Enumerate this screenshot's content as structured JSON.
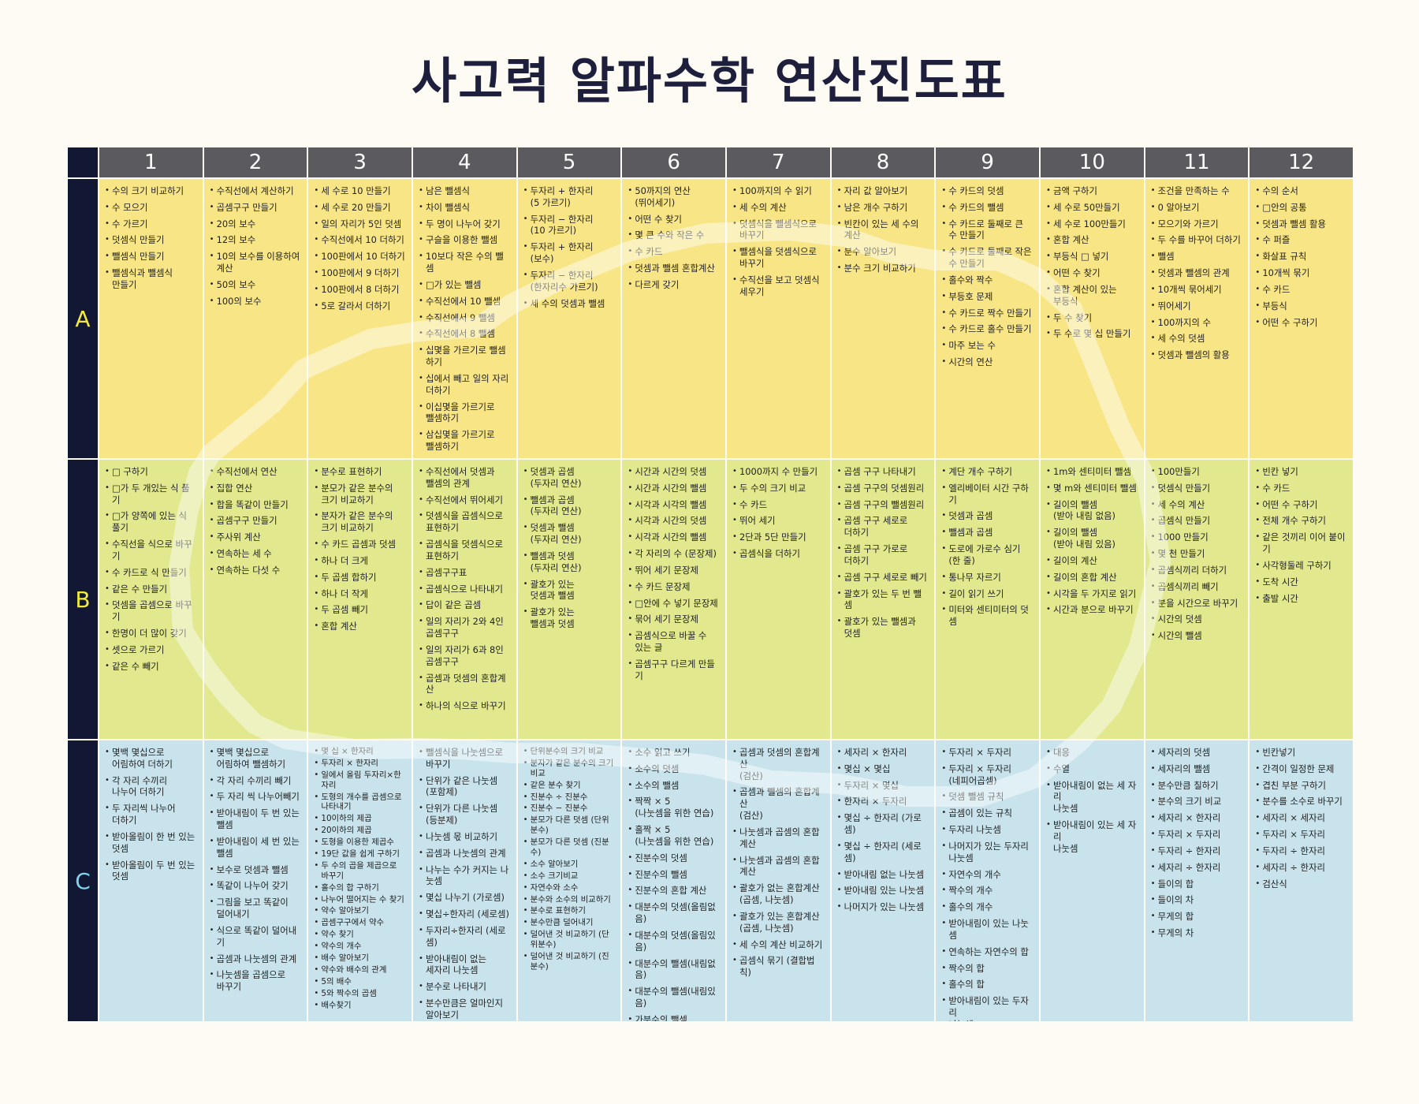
{
  "title": "사고력 알파수학 연산진도표",
  "columns": [
    "1",
    "2",
    "3",
    "4",
    "5",
    "6",
    "7",
    "8",
    "9",
    "10",
    "11",
    "12"
  ],
  "rows": [
    {
      "label": "A",
      "cells": [
        [
          "수의 크기 비교하기",
          "수 모으기",
          "수 가르기",
          "덧셈식 만들기",
          "뺄셈식 만들기",
          "뺄셈식과 뺄셈식\n만들기"
        ],
        [
          "수직선에서 계산하기",
          "곱셈구구 만들기",
          "20의 보수",
          "12의 보수",
          "10의 보수를 이용하여\n계산",
          "50의 보수",
          "100의 보수"
        ],
        [
          "세 수로 10 만들기",
          "세 수로 20 만들기",
          "일의 자리가 5인 덧셈",
          "수직선에서 10 더하기",
          "100판에서 10 더하기",
          "100판에서 9 더하기",
          "100판에서 8 더하기",
          "5로 갈라서 더하기"
        ],
        [
          "남은 뺄셈식",
          "차이 뺄셈식",
          "두 명이 나누어 갖기",
          "구슬을 이용한 뺄셈",
          "10보다 작은 수의 뺄셈",
          "□가 있는 뺄셈",
          "수직선에서 10 뺄셈",
          "수직선에서 9 뺄셈",
          "수직선에서 8 뺄셈",
          "십몇을 가르기로 뺄셈\n하기",
          "십에서 빼고 일의 자리\n더하기",
          "이십몇을 가르기로\n뺄셈하기",
          "삼십몇을 가르기로\n뺄셈하기"
        ],
        [
          "두자리 + 한자리\n(5 가르기)",
          "두자리 − 한자리\n(10 가르기)",
          "두자리 + 한자리\n(보수)",
          "두자리 − 한자리\n(한자리수 가르기)",
          "세 수의 덧셈과 뺄셈"
        ],
        [
          "50까지의 연산\n(뛰어세기)",
          "어떤 수 찾기",
          "몇 큰 수와 작은 수",
          "수 카드",
          "덧셈과 뺄셈 혼합계산",
          "다르게 갖기"
        ],
        [
          "100까지의 수 읽기",
          "세 수의 계산",
          "덧셈식을 뺄셈식으로\n바꾸기",
          "뺄셈식을 덧셈식으로\n바꾸기",
          "수직선을 보고 덧셈식\n세우기"
        ],
        [
          "자리 값 알아보기",
          "남은 개수 구하기",
          "빈칸이 있는 세 수의\n계산",
          "분수 알아보기",
          "분수 크기 비교하기"
        ],
        [
          "수 카드의 덧셈",
          "수 카드의 뺄셈",
          "수 카드로 둘째로 큰\n수 만들기",
          "수 카드로 둘째로 작은\n수 만들기",
          "홀수와 짝수",
          "부등호 문제",
          "수 카드로 짝수 만들기",
          "수 카드로 홀수 만들기",
          "마주 보는 수",
          "시간의 연산"
        ],
        [
          "금액 구하기",
          "세 수로 50만들기",
          "세 수로 100만들기",
          "혼합 계산",
          "부등식 □ 넣기",
          "어떤 수 찾기",
          "혼합 계산이 있는\n부등식",
          "두 수 찾기",
          "두 수로 몇 십 만들기"
        ],
        [
          "조건을 만족하는 수",
          "0 알아보기",
          "모으기와 가르기",
          "두 수를 바꾸어 더하기",
          "뺄셈",
          "덧셈과 뺄셈의 관계",
          "10개씩 묶어세기",
          "뛰어세기",
          "100까지의 수",
          "세 수의 덧셈",
          "덧셈과 뺄셈의 활용"
        ],
        [
          "수의 순서",
          "□안의 공통",
          "덧셈과 뺄셈 활용",
          "수 퍼즐",
          "화살표 규칙",
          "10개씩 묶기",
          "수 카드",
          "부등식",
          "어떤 수 구하기"
        ]
      ]
    },
    {
      "label": "B",
      "cells": [
        [
          "□ 구하기",
          "□가 두 개있는 식 풀기",
          "□가 양쪽에 있는 식\n풀기",
          "수직선을 식으로 바꾸기",
          "수 카드로 식 만들기",
          "같은 수 만들기",
          "덧셈을 곱셈으로 바꾸기",
          "한명이 더 많이 갖기",
          "셋으로 가르기",
          "같은 수 빼기"
        ],
        [
          "수직선에서 연산",
          "집합 연산",
          "합을 똑같이 만들기",
          "곱셈구구 만들기",
          "주사위 계산",
          "연속하는 세 수",
          "연속하는 다섯 수"
        ],
        [
          "분수로 표현하기",
          "분모가 같은 분수의\n크기 비교하기",
          "분자가 같은 분수의\n크기 비교하기",
          "수 카드 곱셈과 덧셈",
          "하나 더 크게",
          "두 곱셈 합하기",
          "하나 더 작게",
          "두 곱셈 빼기",
          "혼합 계산"
        ],
        [
          "수직선에서 덧셈과\n뺄셈의 관계",
          "수직선에서 뛰어세기",
          "덧셈식을 곱셈식으로\n표현하기",
          "곱셈식을 덧셈식으로\n표현하기",
          "곱셈구구표",
          "곱셈식으로 나타내기",
          "답이 같은 곱셈",
          "일의 자리가 2와 4인\n곱셈구구",
          "일의 자리가 6과 8인\n곱셈구구",
          "곱셈과 덧셈의 혼합계산",
          "하나의 식으로 바꾸기"
        ],
        [
          "덧셈과 곱셈\n(두자리 연산)",
          "뺄셈과 곱셈\n(두자리 연산)",
          "덧셈과 뺄셈\n(두자리 연산)",
          "뺄셈과 덧셈\n(두자리 연산)",
          "괄호가 있는\n덧셈과 뺄셈",
          "괄호가 있는\n뺄셈과 덧셈"
        ],
        [
          "시간과 시간의 덧셈",
          "시간과 시간의 뺄셈",
          "시각과 시각의 뺄셈",
          "시각과 시간의 덧셈",
          "시각과 시간의 뺄셈",
          "각 자리의 수 (문장제)",
          "뛰어 세기 문장제",
          "수 카드 문장제",
          "□안에 수 넣기 문장제",
          "묶어 세기 문장제",
          "곱셈식으로 바꿀 수\n있는 글",
          "곱셈구구 다르게 만들기"
        ],
        [
          "1000까지 수 만들기",
          "두 수의 크기 비교",
          "수 카드",
          "뛰어 세기",
          "2단과 5단 만들기",
          "곱셈식을 더하기"
        ],
        [
          "곱셈 구구 나타내기",
          "곱셈 구구의 덧셈원리",
          "곱셈 구구의 뺄셈원리",
          "곱셈 구구 세로로\n더하기",
          "곱셈 구구 가로로\n더하기",
          "곱셈 구구 세로로 빼기",
          "괄호가 있는 두 번 뺄셈",
          "괄호가 있는 뺄셈과\n덧셈"
        ],
        [
          "계단 개수 구하기",
          "엘리베이터 시간 구하기",
          "덧셈과 곱셈",
          "뺄셈과 곱셈",
          "도로에 가로수 심기\n(한 줄)",
          "통나무 자르기",
          "길이 읽기 쓰기",
          "미터와 센티미터의 덧셈"
        ],
        [
          "1m와 센티미터 뺄셈",
          "몇 m와 센티미터 뺄셈",
          "길이의 뺄셈\n(받아 내림 없음)",
          "길이의 뺄셈\n(받아 내림 있음)",
          "길이의 계산",
          "길이의 혼합 계산",
          "시각을 두 가지로 읽기",
          "시간과 분으로 바꾸기"
        ],
        [
          "100만들기",
          "덧셈식 만들기",
          "세 수의 계산",
          "곱셈식 만들기",
          "1000 만들기",
          "몇 천 만들기",
          "곱셈식끼리 더하기",
          "곱셈식끼리 빼기",
          "분을 시간으로 바꾸기",
          "시간의 덧셈",
          "시간의 뺄셈"
        ],
        [
          "빈칸 넣기",
          "수 카드",
          "어떤 수 구하기",
          "전체 개수 구하기",
          "같은 것끼리 이어 붙이기",
          "사각형둘레 구하기",
          "도착 시간",
          "출발 시간"
        ]
      ]
    },
    {
      "label": "C",
      "cells": [
        [
          "몇백 몇십으로\n어림하여 더하기",
          "각 자리 수끼리\n나누어 더하기",
          "두 자리씩 나누어\n더하기",
          "받아올림이 한 번 있는\n덧셈",
          "받아올림이 두 번 있는\n덧셈"
        ],
        [
          "몇백 몇십으로\n어림하여 뺄셈하기",
          "각 자리 수끼리 빼기",
          "두 자리 씩 나누어빼기",
          "받아내림이 두 번 있는\n뺄셈",
          "받아내림이 세 번 있는\n뺄셈",
          "보수로 덧셈과 뺄셈",
          "똑같이 나누어 갖기",
          "그림을 보고 똑같이\n덜어내기",
          "식으로 똑같이 덜어내기",
          "곱셈과 나눗셈의 관계",
          "나눗셈을 곱셈으로\n바꾸기"
        ],
        [
          "몇 십 × 한자리",
          "두자리 × 한자리",
          "일에서 올림 두자리×한자리",
          "도형의 개수를 곱셈으로 나타내기",
          "10이하의 제곱",
          "20이하의 제곱",
          "도형을 이용한 제곱수",
          "19단 값을 쉽게 구하기",
          "두 수의 곱을 제곱으로 바꾸기",
          "홀수의 합 구하기",
          "나누어 떨어지는 수 찾기",
          "약수 알아보기",
          "곱셈구구에서 약수",
          "약수 찾기",
          "약수의 개수",
          "배수 알아보기",
          "약수와 배수의 관계",
          "5의 배수",
          "5와 짝수의 곱셈",
          "배수찾기"
        ],
        [
          "뺄셈식을 나눗셈으로\n바꾸기",
          "단위가 같은 나눗셈\n(포함제)",
          "단위가 다른 나눗셈\n(등분제)",
          "나눗셈 몫 비교하기",
          "곱셈과 나눗셈의 관계",
          "나누는 수가 커지는 나눗셈",
          "몇십 나누기 (가로셈)",
          "몇십÷한자리 (세로셈)",
          "두자리÷한자리 (세로셈)",
          "받아내림이 없는\n세자리 나눗셈",
          "분수로 나타내기",
          "분수만큼은 얼마인지\n알아보기"
        ],
        [
          "단위분수의 크기 비교",
          "분자가 같은 분수의 크기 비교",
          "같은 분수 찾기",
          "진분수 ÷ 진분수",
          "진분수 − 진분수",
          "분모가 다른 덧셈 (단위분수)",
          "분모가 다른 덧셈 (진분수)",
          "소수 알아보기",
          "소수 크기비교",
          "자연수와 소수",
          "분수와 소수의 비교하기",
          "분수로 표현하기",
          "분수만큼 덜어내기",
          "덜어낸 것 비교하기 (단위분수)",
          "덜어낸 것 비교하기 (진분수)"
        ],
        [
          "소수 읽고 쓰기",
          "소수의 덧셈",
          "소수의 뺄셈",
          "짝짝 × 5\n(나눗셈을 위한 연습)",
          "홀짝 × 5\n(나눗셈을 위한 연습)",
          "진분수의 덧셈",
          "진분수의 뺄셈",
          "진분수의 혼합 계산",
          "대분수의 덧셈(올림없음)",
          "대분수의 덧셈(올림있음)",
          "대분수의 뺄셈(내림없음)",
          "대분수의 뺄셈(내림있음)",
          "가분수의 뺄셈\n(대분수로 바꿈)"
        ],
        [
          "곱셈과 덧셈의 혼합계산\n(검산)",
          "곱셈과 뺄셈의 혼합계산\n(검산)",
          "나눗셈과 곱셈의 혼합\n계산",
          "나눗셈과 곱셈의 혼합\n계산",
          "괄호가 없는 혼합계산\n(곱셈, 나눗셈)",
          "괄호가 있는 혼합계산\n(곱셈, 나눗셈)",
          "세 수의 계산 비교하기",
          "곱셈식 묶기 (결합법칙)"
        ],
        [
          "세자리 × 한자리",
          "몇십 × 몇십",
          "두자리 × 몇십",
          "한자리 × 두자리",
          "몇십 ÷ 한자리 (가로셈)",
          "몇십 ÷ 한자리 (세로셈)",
          "받아내림 없는 나눗셈",
          "받아내림 있는 나눗셈",
          "나머지가 있는 나눗셈"
        ],
        [
          "두자리 × 두자리",
          "두자리 × 두자리\n(네피어곱셈)",
          "덧셈 뺄셈 규칙",
          "곱셈이 있는 규칙",
          "두자리 나눗셈",
          "나머지가 있는 두자리\n나눗셈",
          "자연수의 개수",
          "짝수의 개수",
          "홀수의 개수",
          "받아내림이 있는 나눗셈",
          "연속하는 자연수의 합",
          "짝수의 합",
          "홀수의 합",
          "받아내림이 있는 두자리\n나눗셈"
        ],
        [
          "대응",
          "수열",
          "받아내림이 없는 세 자리\n나눗셈",
          "받아내림이 있는 세 자리\n나눗셈"
        ],
        [
          "세자리의 덧셈",
          "세자리의 뺄셈",
          "분수만큼 칠하기",
          "분수의 크기 비교",
          "세자리 × 한자리",
          "두자리 × 두자리",
          "두자리 ÷ 한자리",
          "세자리 ÷ 한자리",
          "들이의 합",
          "들이의 차",
          "무게의 합",
          "무게의 차"
        ],
        [
          "빈칸넣기",
          "간격이 일정한 문제",
          "겹친 부분 구하기",
          "분수를 소수로 바꾸기",
          "세자리 × 세자리",
          "두자리 × 두자리",
          "두자리 ÷ 한자리",
          "세자리 ÷ 한자리",
          "검산식"
        ]
      ]
    }
  ]
}
